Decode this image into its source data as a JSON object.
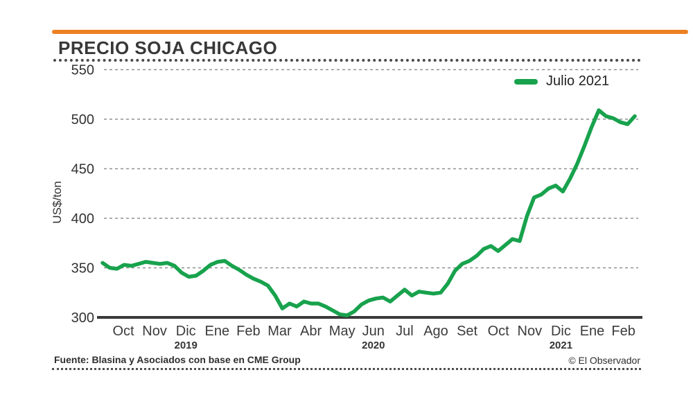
{
  "page": {
    "background": "#ffffff",
    "accent_bar_color": "#ED8122"
  },
  "header": {
    "title": "PRECIO SOJA CHICAGO"
  },
  "legend": {
    "label": "Julio 2021",
    "swatch_color": "#18A24D"
  },
  "footer": {
    "source": "Fuente: Blasina y Asociados con base en CME Group",
    "credit": "© El Observador"
  },
  "chart_data": {
    "type": "line",
    "title": "PRECIO SOJA CHICAGO",
    "xlabel": "",
    "ylabel": "US$/ton",
    "ylim": [
      300,
      550
    ],
    "yticks": [
      300,
      350,
      400,
      450,
      500,
      550
    ],
    "grid": "horizontal-dashed",
    "grid_color": "#8f8f8f",
    "axis_color": "#3A3A3A",
    "tick_text_color": "#333333",
    "legend_position": "top-right",
    "x_unit": "weekly samples, Oct 2019 - Feb 2021",
    "months": [
      {
        "label": "Oct"
      },
      {
        "label": "Nov"
      },
      {
        "label": "Dic",
        "year": "2019"
      },
      {
        "label": "Ene"
      },
      {
        "label": "Feb"
      },
      {
        "label": "Mar"
      },
      {
        "label": "Abr"
      },
      {
        "label": "May"
      },
      {
        "label": "Jun",
        "year": "2020"
      },
      {
        "label": "Jul"
      },
      {
        "label": "Ago"
      },
      {
        "label": "Set"
      },
      {
        "label": "Oct"
      },
      {
        "label": "Nov"
      },
      {
        "label": "Dic",
        "year": "2021"
      },
      {
        "label": "Ene"
      },
      {
        "label": "Feb"
      }
    ],
    "series": [
      {
        "name": "Julio 2021",
        "color": "#18A24D",
        "values": [
          355,
          350,
          349,
          353,
          352,
          354,
          356,
          355,
          354,
          355,
          352,
          345,
          341,
          342,
          347,
          353,
          356,
          357,
          352,
          348,
          343,
          339,
          336,
          332,
          322,
          309,
          314,
          311,
          316,
          314,
          314,
          311,
          307,
          303,
          302,
          306,
          313,
          317,
          319,
          320,
          316,
          322,
          328,
          322,
          326,
          325,
          324,
          325,
          334,
          347,
          354,
          357,
          362,
          369,
          372,
          367,
          373,
          379,
          377,
          402,
          421,
          424,
          430,
          433,
          427,
          440,
          455,
          473,
          492,
          509,
          503,
          501,
          497,
          495,
          503
        ]
      }
    ]
  }
}
